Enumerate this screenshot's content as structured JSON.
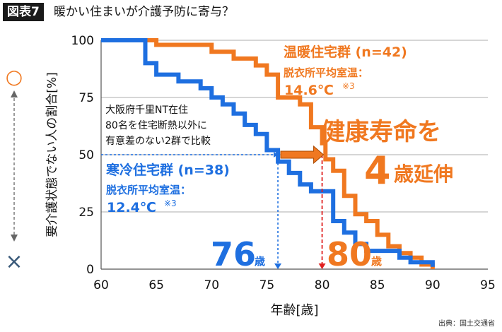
{
  "figure": {
    "badge": "図表7",
    "title": "暖かい住まいが介護予防に寄与？",
    "source": "出典：国土交通省"
  },
  "chart_data": {
    "type": "line",
    "xlabel": "年齢[歳]",
    "ylabel": "要介護状態でない人の割合[%]",
    "xlim": [
      60,
      95
    ],
    "ylim": [
      0,
      100
    ],
    "xticks": [
      60,
      65,
      70,
      75,
      80,
      85,
      90,
      95
    ],
    "yticks": [
      0,
      25,
      50,
      75,
      100
    ],
    "grid": "horizontal",
    "series": [
      {
        "name": "温暖住宅群 (n=42)",
        "color": "#f07820",
        "step_points": [
          [
            60,
            100
          ],
          [
            65,
            100
          ],
          [
            65,
            98
          ],
          [
            70,
            98
          ],
          [
            70,
            95
          ],
          [
            72,
            95
          ],
          [
            72,
            92
          ],
          [
            74,
            92
          ],
          [
            74,
            89
          ],
          [
            75,
            89
          ],
          [
            75,
            85
          ],
          [
            76,
            85
          ],
          [
            76,
            75
          ],
          [
            78,
            75
          ],
          [
            78,
            72
          ],
          [
            79,
            72
          ],
          [
            79,
            62
          ],
          [
            80,
            62
          ],
          [
            80,
            55
          ],
          [
            80.3,
            55
          ],
          [
            80.3,
            48
          ],
          [
            81,
            48
          ],
          [
            81,
            43
          ],
          [
            82,
            43
          ],
          [
            82,
            32
          ],
          [
            83,
            32
          ],
          [
            83,
            24
          ],
          [
            84,
            24
          ],
          [
            84,
            21
          ],
          [
            85,
            21
          ],
          [
            85,
            15
          ],
          [
            86,
            15
          ],
          [
            86,
            10
          ],
          [
            87,
            10
          ],
          [
            87,
            7
          ],
          [
            88,
            7
          ],
          [
            88,
            5
          ],
          [
            89,
            5
          ],
          [
            89,
            2
          ],
          [
            90,
            2
          ],
          [
            90,
            0
          ]
        ]
      },
      {
        "name": "寒冷住宅群 (n=38)",
        "color": "#1e6fe0",
        "step_points": [
          [
            60,
            100
          ],
          [
            64,
            100
          ],
          [
            64,
            90
          ],
          [
            65,
            90
          ],
          [
            65,
            85
          ],
          [
            67,
            85
          ],
          [
            67,
            82
          ],
          [
            69,
            82
          ],
          [
            69,
            79
          ],
          [
            70,
            79
          ],
          [
            70,
            75
          ],
          [
            71,
            75
          ],
          [
            71,
            72
          ],
          [
            72,
            72
          ],
          [
            72,
            68
          ],
          [
            73,
            68
          ],
          [
            73,
            63
          ],
          [
            74,
            63
          ],
          [
            74,
            59
          ],
          [
            75,
            59
          ],
          [
            75,
            52
          ],
          [
            76,
            52
          ],
          [
            76,
            47
          ],
          [
            77,
            47
          ],
          [
            77,
            42
          ],
          [
            78,
            42
          ],
          [
            78,
            37
          ],
          [
            79,
            37
          ],
          [
            79,
            34
          ],
          [
            81,
            34
          ],
          [
            81,
            21
          ],
          [
            82,
            21
          ],
          [
            82,
            16
          ],
          [
            83,
            16
          ],
          [
            83,
            11
          ],
          [
            84,
            11
          ],
          [
            84,
            8
          ],
          [
            87,
            8
          ],
          [
            87,
            5
          ],
          [
            88,
            5
          ],
          [
            88,
            3
          ],
          [
            90,
            3
          ],
          [
            90,
            1
          ]
        ]
      }
    ],
    "annotations": {
      "warm_title": "温暖住宅群 (n=42)",
      "warm_sub": "脱衣所平均室温：",
      "warm_temp": "14.6℃",
      "warm_note": "※3",
      "cold_title": "寒冷住宅群 (n=38)",
      "cold_sub": "脱衣所平均室温：",
      "cold_temp": "12.4℃",
      "cold_note": "※3",
      "study_line1": "大阪府千里NT在住",
      "study_line2": "80名を住宅断熱以外に",
      "study_line3": "有意差のない2群で比較",
      "headline_line1": "健康寿命を",
      "headline_num": "4",
      "headline_line2": "歳延伸",
      "cold_age_num": "76",
      "cold_age_unit": "歳",
      "warm_age_num": "80",
      "warm_age_unit": "歳",
      "median_level": 50,
      "cold_median_age": 76,
      "warm_median_age": 80
    },
    "side_legend": {
      "good_symbol": "○",
      "bad_symbol": "×",
      "good_color": "#f07820",
      "bad_color": "#3a5a7a"
    }
  }
}
